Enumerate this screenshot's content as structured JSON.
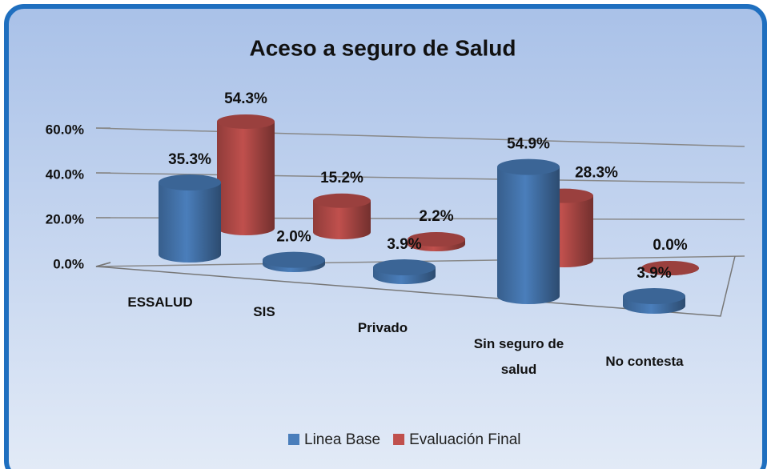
{
  "chart_data": {
    "type": "bar3d",
    "title": "Aceso a seguro de Salud",
    "categories": [
      "ESSALUD",
      "SIS",
      "Privado",
      "Sin seguro de salud",
      "No contesta"
    ],
    "series": [
      {
        "name": "Linea Base",
        "color": "#4a7ebb",
        "values": [
          35.3,
          2.0,
          3.9,
          54.9,
          3.9
        ],
        "value_labels": [
          "35.3%",
          "2.0%",
          "3.9%",
          "54.9%",
          "3.9%"
        ]
      },
      {
        "name": "Evaluación Final",
        "color": "#c0504d",
        "values": [
          54.3,
          15.2,
          2.2,
          28.3,
          0.0
        ],
        "value_labels": [
          "54.3%",
          "15.2%",
          "2.2%",
          "28.3%",
          "0.0%"
        ]
      }
    ],
    "ylim": [
      0,
      60
    ],
    "yticks": [
      {
        "value": 0,
        "label": "0.0%"
      },
      {
        "value": 20,
        "label": "20.0%"
      },
      {
        "value": 40,
        "label": "40.0%"
      },
      {
        "value": 60,
        "label": "60.0%"
      }
    ],
    "grid": true,
    "legend": "bottom"
  }
}
